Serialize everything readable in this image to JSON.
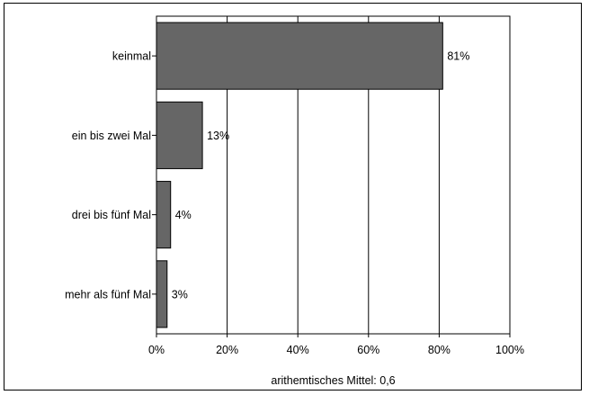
{
  "chart_data": {
    "type": "bar",
    "orientation": "horizontal",
    "categories": [
      "keinmal",
      "ein bis zwei Mal",
      "drei bis fünf Mal",
      "mehr als fünf Mal"
    ],
    "values": [
      81,
      13,
      4,
      3
    ],
    "value_labels": [
      "81%",
      "13%",
      "4%",
      "3%"
    ],
    "xlim": [
      0,
      100
    ],
    "x_ticks": [
      "0%",
      "20%",
      "40%",
      "60%",
      "80%",
      "100%"
    ],
    "xlabel": "arithemtisches Mittel: 0,6",
    "grid": "vertical",
    "bar_color": "#666666"
  }
}
